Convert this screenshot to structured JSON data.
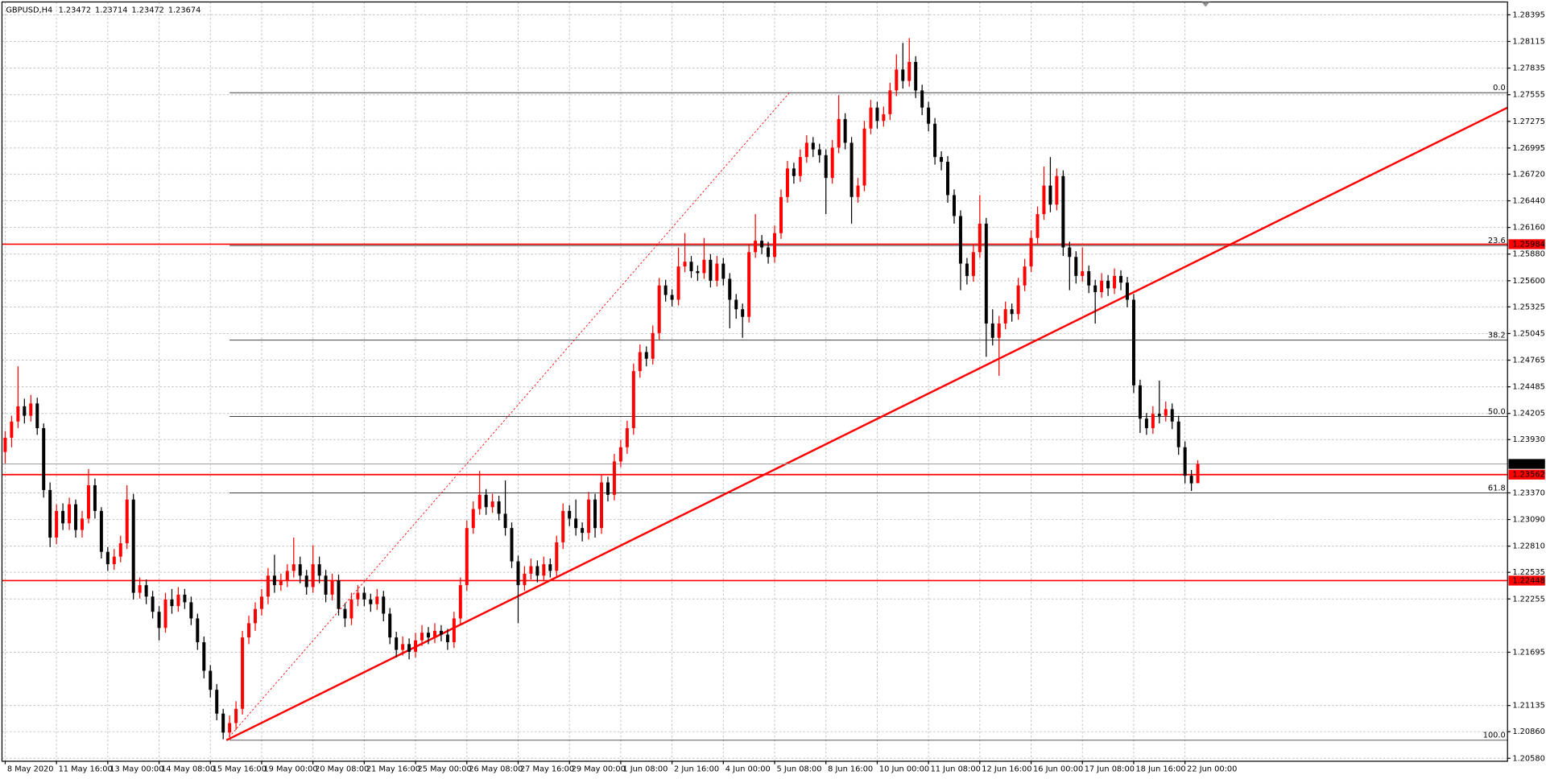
{
  "chart_data": {
    "type": "candlestick",
    "symbol": "GBPUSD,H4",
    "up_color": "#ff0000",
    "down_color": "#000000",
    "grid": true,
    "ylim": [
      1.20549,
      1.2853
    ],
    "yticks": [
      1.28395,
      1.28115,
      1.27835,
      1.27555,
      1.27275,
      1.26995,
      {
        "value": 1.2672,
        "label": "1.26720"
      },
      {
        "value": 1.2644,
        "label": "1.26440"
      },
      {
        "value": 1.2616,
        "label": "1.26160"
      },
      {
        "value": 1.2588,
        "label": "1.25880"
      },
      {
        "value": 1.256,
        "label": "1.25600"
      },
      1.25325,
      1.25045,
      1.24765,
      1.24485,
      1.24205,
      {
        "value": 1.2393,
        "label": "1.23930"
      },
      {
        "value": 1.2337,
        "label": "1.23370"
      },
      {
        "value": 1.2309,
        "label": "1.23090"
      },
      {
        "value": 1.2281,
        "label": "1.22810"
      },
      1.22535,
      1.22255,
      1.21695,
      1.21135,
      {
        "value": 1.2086,
        "label": "1.20860"
      },
      {
        "value": 1.2058,
        "label": "1.20580"
      }
    ],
    "xlim": [
      -0.5,
      234.3
    ],
    "xticks": [
      {
        "value": 0,
        "label": "8 May 2020"
      },
      {
        "value": 8,
        "label": "11 May 16:00"
      },
      {
        "value": 16,
        "label": "13 May 00:00"
      },
      {
        "value": 24,
        "label": "14 May 08:00"
      },
      {
        "value": 32,
        "label": "15 May 16:00"
      },
      {
        "value": 40,
        "label": "19 May 00:00"
      },
      {
        "value": 48,
        "label": "20 May 08:00"
      },
      {
        "value": 56,
        "label": "21 May 16:00"
      },
      {
        "value": 64,
        "label": "25 May 00:00"
      },
      {
        "value": 72,
        "label": "26 May 08:00"
      },
      {
        "value": 80,
        "label": "27 May 16:00"
      },
      {
        "value": 88,
        "label": "29 May 00:00"
      },
      {
        "value": 96,
        "label": "1 Jun 08:00"
      },
      {
        "value": 104,
        "label": "2 Jun 16:00"
      },
      {
        "value": 112,
        "label": "4 Jun 00:00"
      },
      {
        "value": 120,
        "label": "5 Jun 08:00"
      },
      {
        "value": 128,
        "label": "8 Jun 16:00"
      },
      {
        "value": 136,
        "label": "10 Jun 00:00"
      },
      {
        "value": 144,
        "label": "11 Jun 08:00"
      },
      {
        "value": 152,
        "label": "12 Jun 16:00"
      },
      {
        "value": 160,
        "label": "16 Jun 00:00"
      },
      {
        "value": 168,
        "label": "17 Jun 08:00"
      },
      {
        "value": 176,
        "label": "18 Jun 16:00"
      },
      {
        "value": 184,
        "label": "22 Jun 00:00"
      }
    ],
    "hlines": [
      {
        "price": 1.25984,
        "color": "#ff0000"
      },
      {
        "price": 1.23562,
        "color": "#ff0000"
      },
      {
        "price": 1.22448,
        "color": "#ff0000"
      }
    ],
    "current_price": 1.23674,
    "fib": {
      "start": 35,
      "color": "#404040",
      "levels": [
        {
          "label": "0.0",
          "price": 1.27576
        },
        {
          "label": "23.6",
          "price": 1.2597
        },
        {
          "label": "38.2",
          "price": 1.24976
        },
        {
          "label": "50.0",
          "price": 1.24173
        },
        {
          "label": "61.8",
          "price": 1.2337
        },
        {
          "label": "100.0",
          "price": 1.2077
        }
      ]
    },
    "trendlines": [
      {
        "x": [
          34.5,
          234.3
        ],
        "y": [
          1.2077,
          1.2742
        ],
        "color": "#ff0000",
        "style": "solid"
      },
      {
        "x": [
          34.5,
          122.3
        ],
        "y": [
          1.2077,
          1.27576
        ],
        "color": "#ff0000",
        "style": "dotted"
      }
    ],
    "candles": [
      [
        1.238,
        1.2402,
        1.2368,
        1.2395
      ],
      [
        1.2395,
        1.2418,
        1.2385,
        1.2412
      ],
      [
        1.2412,
        1.247,
        1.2405,
        1.2428
      ],
      [
        1.2428,
        1.2436,
        1.241,
        1.2418
      ],
      [
        1.2418,
        1.244,
        1.2412,
        1.2431
      ],
      [
        1.2431,
        1.2437,
        1.2398,
        1.2405
      ],
      [
        1.2405,
        1.241,
        1.2332,
        1.234
      ],
      [
        1.234,
        1.2348,
        1.228,
        1.229
      ],
      [
        1.229,
        1.2325,
        1.2283,
        1.2318
      ],
      [
        1.2318,
        1.2326,
        1.2298,
        1.2305
      ],
      [
        1.2305,
        1.2332,
        1.2298,
        1.2325
      ],
      [
        1.2325,
        1.233,
        1.229,
        1.2298
      ],
      [
        1.2298,
        1.2318,
        1.229,
        1.231
      ],
      [
        1.231,
        1.2362,
        1.2305,
        1.2345
      ],
      [
        1.2345,
        1.2352,
        1.231,
        1.2318
      ],
      [
        1.2318,
        1.2322,
        1.2268,
        1.2275
      ],
      [
        1.2275,
        1.228,
        1.2255,
        1.2262
      ],
      [
        1.2262,
        1.2278,
        1.2256,
        1.227
      ],
      [
        1.227,
        1.2292,
        1.2264,
        1.2284
      ],
      [
        1.2284,
        1.2345,
        1.2278,
        1.233
      ],
      [
        1.233,
        1.2336,
        1.2225,
        1.2232
      ],
      [
        1.2232,
        1.2248,
        1.2226,
        1.224
      ],
      [
        1.224,
        1.2246,
        1.222,
        1.2228
      ],
      [
        1.2228,
        1.2234,
        1.2205,
        1.2212
      ],
      [
        1.2212,
        1.2218,
        1.2182,
        1.2195
      ],
      [
        1.2195,
        1.2232,
        1.219,
        1.2225
      ],
      [
        1.2225,
        1.2236,
        1.221,
        1.2218
      ],
      [
        1.2218,
        1.2238,
        1.2212,
        1.223
      ],
      [
        1.223,
        1.2236,
        1.2215,
        1.2222
      ],
      [
        1.2222,
        1.2228,
        1.2198,
        1.2205
      ],
      [
        1.2205,
        1.221,
        1.2172,
        1.218
      ],
      [
        1.218,
        1.2186,
        1.2142,
        1.215
      ],
      [
        1.215,
        1.2156,
        1.2122,
        1.213
      ],
      [
        1.213,
        1.2136,
        1.2098,
        1.2105
      ],
      [
        1.2105,
        1.211,
        1.2078,
        1.2085
      ],
      [
        1.2085,
        1.2103,
        1.208,
        1.2095
      ],
      [
        1.2095,
        1.2118,
        1.2088,
        1.211
      ],
      [
        1.211,
        1.2192,
        1.2104,
        1.2185
      ],
      [
        1.2185,
        1.2208,
        1.2178,
        1.22
      ],
      [
        1.22,
        1.2222,
        1.2192,
        1.2215
      ],
      [
        1.2215,
        1.2236,
        1.2208,
        1.2228
      ],
      [
        1.2228,
        1.2258,
        1.222,
        1.225
      ],
      [
        1.225,
        1.2272,
        1.2232,
        1.224
      ],
      [
        1.224,
        1.2252,
        1.2234,
        1.2245
      ],
      [
        1.2245,
        1.2262,
        1.2238,
        1.2255
      ],
      [
        1.2255,
        1.229,
        1.2248,
        1.2262
      ],
      [
        1.2262,
        1.227,
        1.2242,
        1.225
      ],
      [
        1.225,
        1.2256,
        1.223,
        1.2238
      ],
      [
        1.2238,
        1.2282,
        1.2232,
        1.2262
      ],
      [
        1.2262,
        1.227,
        1.2242,
        1.225
      ],
      [
        1.225,
        1.2256,
        1.2222,
        1.223
      ],
      [
        1.223,
        1.2252,
        1.2224,
        1.2245
      ],
      [
        1.2245,
        1.2251,
        1.2208,
        1.2215
      ],
      [
        1.2215,
        1.2221,
        1.2196,
        1.2205
      ],
      [
        1.2205,
        1.2232,
        1.2198,
        1.2225
      ],
      [
        1.2225,
        1.224,
        1.2218,
        1.2232
      ],
      [
        1.2232,
        1.2238,
        1.2218,
        1.2225
      ],
      [
        1.2225,
        1.2231,
        1.2212,
        1.222
      ],
      [
        1.222,
        1.2236,
        1.2214,
        1.2228
      ],
      [
        1.2228,
        1.2234,
        1.2202,
        1.221
      ],
      [
        1.221,
        1.2216,
        1.2178,
        1.2185
      ],
      [
        1.2185,
        1.2191,
        1.2164,
        1.2172
      ],
      [
        1.2172,
        1.2186,
        1.2166,
        1.2178
      ],
      [
        1.2178,
        1.2184,
        1.2162,
        1.217
      ],
      [
        1.217,
        1.219,
        1.2164,
        1.2182
      ],
      [
        1.2182,
        1.2198,
        1.2176,
        1.219
      ],
      [
        1.219,
        1.2196,
        1.2178,
        1.2185
      ],
      [
        1.2185,
        1.22,
        1.2179,
        1.2192
      ],
      [
        1.2192,
        1.2198,
        1.2181,
        1.2188
      ],
      [
        1.2188,
        1.2194,
        1.2172,
        1.218
      ],
      [
        1.218,
        1.2212,
        1.2174,
        1.2205
      ],
      [
        1.2205,
        1.2248,
        1.2198,
        1.224
      ],
      [
        1.224,
        1.2308,
        1.2234,
        1.23
      ],
      [
        1.23,
        1.2328,
        1.2294,
        1.232
      ],
      [
        1.232,
        1.236,
        1.2314,
        1.2335
      ],
      [
        1.2335,
        1.2341,
        1.2314,
        1.2322
      ],
      [
        1.2322,
        1.2336,
        1.2316,
        1.2328
      ],
      [
        1.2328,
        1.2334,
        1.2308,
        1.2315
      ],
      [
        1.2315,
        1.235,
        1.2292,
        1.23
      ],
      [
        1.23,
        1.2306,
        1.2258,
        1.2265
      ],
      [
        1.2265,
        1.2271,
        1.22,
        1.224
      ],
      [
        1.224,
        1.226,
        1.2234,
        1.2252
      ],
      [
        1.2252,
        1.2268,
        1.2246,
        1.226
      ],
      [
        1.226,
        1.2266,
        1.2243,
        1.225
      ],
      [
        1.225,
        1.227,
        1.2244,
        1.2262
      ],
      [
        1.2262,
        1.2268,
        1.2248,
        1.2255
      ],
      [
        1.2255,
        1.2292,
        1.2249,
        1.2285
      ],
      [
        1.2285,
        1.2326,
        1.2278,
        1.2318
      ],
      [
        1.2318,
        1.2324,
        1.2302,
        1.231
      ],
      [
        1.231,
        1.233,
        1.2292,
        1.23
      ],
      [
        1.23,
        1.2306,
        1.2286,
        1.2295
      ],
      [
        1.2295,
        1.2338,
        1.2288,
        1.233
      ],
      [
        1.233,
        1.2336,
        1.229,
        1.23
      ],
      [
        1.23,
        1.2356,
        1.2294,
        1.2348
      ],
      [
        1.2348,
        1.2354,
        1.2328,
        1.2335
      ],
      [
        1.2335,
        1.2378,
        1.2329,
        1.237
      ],
      [
        1.237,
        1.2393,
        1.2364,
        1.2385
      ],
      [
        1.2385,
        1.2413,
        1.2378,
        1.2405
      ],
      [
        1.2405,
        1.2473,
        1.2398,
        1.2465
      ],
      [
        1.2465,
        1.2493,
        1.2458,
        1.2485
      ],
      [
        1.2485,
        1.2491,
        1.247,
        1.2478
      ],
      [
        1.2478,
        1.2513,
        1.2472,
        1.2505
      ],
      [
        1.2505,
        1.2563,
        1.2498,
        1.2555
      ],
      [
        1.2555,
        1.2561,
        1.2538,
        1.2545
      ],
      [
        1.2545,
        1.2551,
        1.2533,
        1.254
      ],
      [
        1.254,
        1.2595,
        1.2534,
        1.2575
      ],
      [
        1.2575,
        1.261,
        1.2569,
        1.258
      ],
      [
        1.258,
        1.2586,
        1.2563,
        1.257
      ],
      [
        1.257,
        1.2576,
        1.256,
        1.2568
      ],
      [
        1.2568,
        1.2605,
        1.2562,
        1.2582
      ],
      [
        1.2582,
        1.2588,
        1.2553,
        1.256
      ],
      [
        1.256,
        1.2586,
        1.2554,
        1.2578
      ],
      [
        1.2578,
        1.2584,
        1.2555,
        1.2562
      ],
      [
        1.2562,
        1.2568,
        1.251,
        1.254
      ],
      [
        1.254,
        1.2546,
        1.252,
        1.253
      ],
      [
        1.253,
        1.2536,
        1.25,
        1.2522
      ],
      [
        1.2522,
        1.2598,
        1.2516,
        1.259
      ],
      [
        1.259,
        1.263,
        1.2584,
        1.2602
      ],
      [
        1.2602,
        1.2608,
        1.2588,
        1.2595
      ],
      [
        1.2595,
        1.2601,
        1.2578,
        1.2585
      ],
      [
        1.2585,
        1.2618,
        1.2579,
        1.261
      ],
      [
        1.261,
        1.2656,
        1.2604,
        1.2648
      ],
      [
        1.2648,
        1.2686,
        1.2642,
        1.2678
      ],
      [
        1.2678,
        1.2684,
        1.2662,
        1.267
      ],
      [
        1.267,
        1.2698,
        1.2664,
        1.269
      ],
      [
        1.269,
        1.2713,
        1.2684,
        1.2705
      ],
      [
        1.2705,
        1.2711,
        1.269,
        1.2698
      ],
      [
        1.2698,
        1.2704,
        1.2684,
        1.2692
      ],
      [
        1.2692,
        1.2698,
        1.263,
        1.2668
      ],
      [
        1.2668,
        1.2708,
        1.2662,
        1.27
      ],
      [
        1.27,
        1.2755,
        1.2694,
        1.273
      ],
      [
        1.273,
        1.2736,
        1.2698,
        1.2705
      ],
      [
        1.2705,
        1.2711,
        1.262,
        1.2648
      ],
      [
        1.2648,
        1.2668,
        1.2642,
        1.266
      ],
      [
        1.266,
        1.2728,
        1.2654,
        1.272
      ],
      [
        1.272,
        1.275,
        1.2714,
        1.2742
      ],
      [
        1.2742,
        1.2748,
        1.272,
        1.2728
      ],
      [
        1.2728,
        1.2743,
        1.2722,
        1.2735
      ],
      [
        1.2735,
        1.2768,
        1.2729,
        1.276
      ],
      [
        1.276,
        1.2798,
        1.2754,
        1.2782
      ],
      [
        1.2782,
        1.281,
        1.2762,
        1.277
      ],
      [
        1.277,
        1.2815,
        1.2764,
        1.279
      ],
      [
        1.279,
        1.2796,
        1.2752,
        1.276
      ],
      [
        1.276,
        1.2766,
        1.2734,
        1.2742
      ],
      [
        1.2742,
        1.2748,
        1.2717,
        1.2725
      ],
      [
        1.2725,
        1.2731,
        1.2682,
        1.269
      ],
      [
        1.269,
        1.2696,
        1.2676,
        1.2685
      ],
      [
        1.2685,
        1.2691,
        1.2642,
        1.265
      ],
      [
        1.265,
        1.2656,
        1.262,
        1.2628
      ],
      [
        1.2628,
        1.2634,
        1.255,
        1.2578
      ],
      [
        1.2578,
        1.2584,
        1.2556,
        1.2565
      ],
      [
        1.2565,
        1.2598,
        1.2559,
        1.259
      ],
      [
        1.259,
        1.265,
        1.2584,
        1.262
      ],
      [
        1.262,
        1.2626,
        1.248,
        1.2515
      ],
      [
        1.2515,
        1.253,
        1.2492,
        1.25
      ],
      [
        1.25,
        1.2523,
        1.246,
        1.2515
      ],
      [
        1.2515,
        1.2538,
        1.2509,
        1.253
      ],
      [
        1.253,
        1.2536,
        1.2517,
        1.2525
      ],
      [
        1.2525,
        1.2563,
        1.2519,
        1.2555
      ],
      [
        1.2555,
        1.2583,
        1.2549,
        1.2575
      ],
      [
        1.2575,
        1.2613,
        1.2569,
        1.2605
      ],
      [
        1.2605,
        1.2638,
        1.2599,
        1.263
      ],
      [
        1.263,
        1.268,
        1.2624,
        1.266
      ],
      [
        1.266,
        1.269,
        1.2632,
        1.264
      ],
      [
        1.264,
        1.2678,
        1.2634,
        1.267
      ],
      [
        1.267,
        1.2676,
        1.2586,
        1.2595
      ],
      [
        1.2595,
        1.2601,
        1.255,
        1.2585
      ],
      [
        1.2585,
        1.2591,
        1.2557,
        1.2565
      ],
      [
        1.2565,
        1.2595,
        1.2559,
        1.257
      ],
      [
        1.257,
        1.2576,
        1.2547,
        1.2555
      ],
      [
        1.2555,
        1.2561,
        1.2515,
        1.2548
      ],
      [
        1.2548,
        1.2568,
        1.2542,
        1.256
      ],
      [
        1.256,
        1.2566,
        1.2544,
        1.2552
      ],
      [
        1.2552,
        1.2573,
        1.2546,
        1.2565
      ],
      [
        1.2565,
        1.2571,
        1.255,
        1.2558
      ],
      [
        1.2558,
        1.2564,
        1.2532,
        1.254
      ],
      [
        1.254,
        1.2546,
        1.2442,
        1.245
      ],
      [
        1.245,
        1.2456,
        1.24,
        1.2415
      ],
      [
        1.2415,
        1.2421,
        1.2398,
        1.2405
      ],
      [
        1.2405,
        1.2428,
        1.2399,
        1.242
      ],
      [
        1.242,
        1.2455,
        1.241,
        1.2418
      ],
      [
        1.2418,
        1.2433,
        1.2412,
        1.2425
      ],
      [
        1.2425,
        1.2431,
        1.2404,
        1.2412
      ],
      [
        1.2412,
        1.2418,
        1.2377,
        1.2385
      ],
      [
        1.2385,
        1.2391,
        1.2347,
        1.2355
      ],
      [
        1.2355,
        1.2361,
        1.2339,
        1.2347
      ],
      [
        1.23472,
        1.23714,
        1.23472,
        1.23674
      ]
    ]
  }
}
